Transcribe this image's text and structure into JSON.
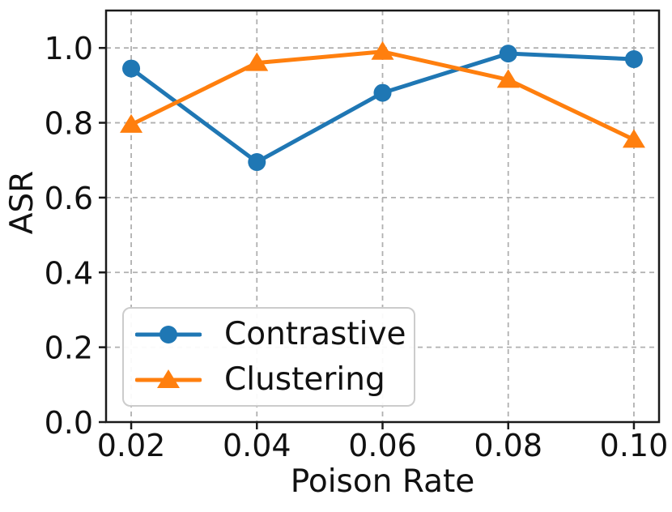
{
  "chart_data": {
    "type": "line",
    "title": "",
    "xlabel": "Poison Rate",
    "ylabel": "ASR",
    "x": [
      0.02,
      0.04,
      0.06,
      0.08,
      0.1
    ],
    "series": [
      {
        "name": "Contrastive",
        "color": "#1f77b4",
        "marker": "circle",
        "values": [
          0.945,
          0.695,
          0.88,
          0.985,
          0.97
        ]
      },
      {
        "name": "Clustering",
        "color": "#ff7f0e",
        "marker": "triangle",
        "values": [
          0.795,
          0.96,
          0.99,
          0.915,
          0.755
        ]
      }
    ],
    "xticks": [
      0.02,
      0.04,
      0.06,
      0.08,
      0.1
    ],
    "xtick_labels": [
      "0.02",
      "0.04",
      "0.06",
      "0.08",
      "0.10"
    ],
    "yticks": [
      0.0,
      0.2,
      0.4,
      0.6,
      0.8,
      1.0
    ],
    "ytick_labels": [
      "0.0",
      "0.2",
      "0.4",
      "0.6",
      "0.8",
      "1.0"
    ],
    "xlim": [
      0.016,
      0.104
    ],
    "ylim": [
      0.0,
      1.1
    ],
    "grid": true,
    "grid_style": "dashed",
    "grid_color": "#b0b0b0",
    "spine_color": "#1a1a1a",
    "text_color": "#111111",
    "legend_position": "lower left"
  }
}
